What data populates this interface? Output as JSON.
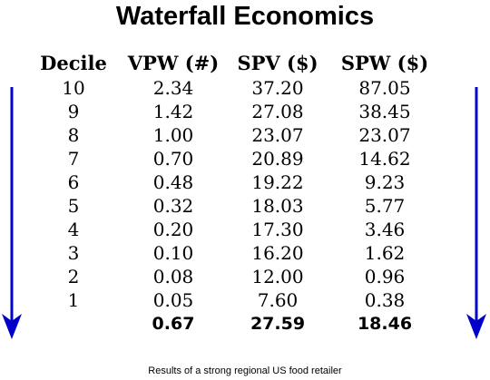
{
  "title": "Waterfall Economics",
  "table": {
    "headers": [
      "Decile",
      "VPW (#)",
      "SPV ($)",
      "SPW ($)"
    ],
    "rows": [
      [
        "10",
        "2.34",
        "37.20",
        "87.05"
      ],
      [
        "9",
        "1.42",
        "27.08",
        "38.45"
      ],
      [
        "8",
        "1.00",
        "23.07",
        "23.07"
      ],
      [
        "7",
        "0.70",
        "20.89",
        "14.62"
      ],
      [
        "6",
        "0.48",
        "19.22",
        "9.23"
      ],
      [
        "5",
        "0.32",
        "18.03",
        "5.77"
      ],
      [
        "4",
        "0.20",
        "17.30",
        "3.46"
      ],
      [
        "3",
        "0.10",
        "16.20",
        "1.62"
      ],
      [
        "2",
        "0.08",
        "12.00",
        "0.96"
      ],
      [
        "1",
        "0.05",
        "7.60",
        "0.38"
      ]
    ],
    "totals": [
      "",
      "0.67",
      "27.59",
      "18.46"
    ]
  },
  "arrow_color": "#0000c8",
  "footnote": "Results of a strong regional US food retailer"
}
